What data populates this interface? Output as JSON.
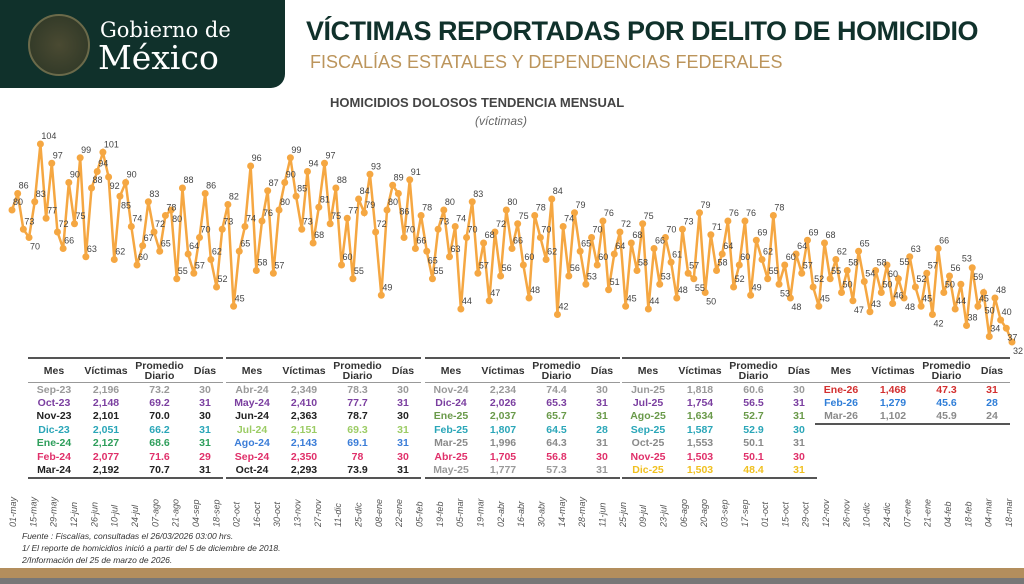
{
  "header": {
    "logo_line1": "Gobierno de",
    "logo_line2": "México",
    "title": "VÍCTIMAS REPORTADAS POR DELITO DE HOMICIDIO",
    "subtitle": "FISCALÍAS ESTATALES Y DEPENDENCIAS FEDERALES"
  },
  "colors": {
    "header_bg": "#10312b",
    "gold": "#bc955c",
    "series": "#f5a742"
  },
  "chart_data": {
    "type": "line",
    "title": "HOMICIDIOS DOLOSOS TENDENCIA MENSUAL",
    "subtitle": "(víctimas)",
    "ylim": [
      30,
      106
    ],
    "x_ticks": [
      "01-may",
      "15-may",
      "29-may",
      "12-jun",
      "26-jun",
      "10-jul",
      "24-jul",
      "07-ago",
      "21-ago",
      "04-sep",
      "18-sep",
      "02-oct",
      "16-oct",
      "30-oct",
      "13-nov",
      "27-nov",
      "11-dic",
      "25-dic",
      "08-ene",
      "22-ene",
      "05-feb",
      "19-feb",
      "05-mar",
      "19-mar",
      "02-abr",
      "16-abr",
      "30-abr",
      "14-may",
      "28-may",
      "11-jun",
      "25-jun",
      "09-jul",
      "23-jul",
      "06-ago",
      "20-ago",
      "03-sep",
      "17-sep",
      "01-oct",
      "15-oct",
      "29-oct",
      "12-nov",
      "26-nov",
      "10-dic",
      "24-dic",
      "07-ene",
      "21-ene",
      "04-feb",
      "18-feb",
      "04-mar",
      "18-mar"
    ],
    "values": [
      80,
      86,
      73,
      70,
      83,
      104,
      77,
      97,
      72,
      66,
      90,
      75,
      99,
      63,
      88,
      94,
      101,
      92,
      62,
      85,
      90,
      74,
      60,
      67,
      83,
      72,
      65,
      78,
      80,
      55,
      88,
      64,
      57,
      70,
      86,
      62,
      52,
      73,
      82,
      45,
      65,
      74,
      96,
      58,
      76,
      87,
      57,
      80,
      90,
      99,
      85,
      73,
      94,
      68,
      81,
      97,
      75,
      88,
      60,
      77,
      55,
      84,
      79,
      93,
      72,
      49,
      80,
      89,
      86,
      70,
      91,
      66,
      78,
      65,
      55,
      73,
      80,
      63,
      74,
      44,
      70,
      83,
      57,
      68,
      47,
      72,
      56,
      80,
      66,
      75,
      60,
      48,
      78,
      70,
      62,
      84,
      42,
      74,
      56,
      79,
      65,
      53,
      70,
      60,
      76,
      51,
      64,
      72,
      45,
      68,
      58,
      75,
      44,
      66,
      53,
      70,
      61,
      48,
      73,
      57,
      55,
      79,
      50,
      71,
      58,
      64,
      76,
      52,
      60,
      76,
      49,
      69,
      62,
      55,
      78,
      53,
      60,
      48,
      64,
      57,
      69,
      52,
      45,
      68,
      55,
      62,
      50,
      58,
      47,
      65,
      54,
      43,
      58,
      50,
      60,
      46,
      55,
      48,
      63,
      52,
      45,
      57,
      42,
      66,
      50,
      56,
      44,
      53,
      38,
      59,
      45,
      50,
      34,
      48,
      40,
      37,
      32
    ]
  },
  "table_headers": {
    "mes": "Mes",
    "victimas": "Víctimas",
    "promedio": "Promedio Diario",
    "dias": "Días"
  },
  "tables": [
    [
      {
        "mes": "Sep-23",
        "v": "2,196",
        "p": "73.2",
        "d": "30",
        "color": "#9a9a9a"
      },
      {
        "mes": "Oct-23",
        "v": "2,148",
        "p": "69.2",
        "d": "31",
        "color": "#7b3fa0"
      },
      {
        "mes": "Nov-23",
        "v": "2,101",
        "p": "70.0",
        "d": "30",
        "color": "#222222"
      },
      {
        "mes": "Dic-23",
        "v": "2,051",
        "p": "66.2",
        "d": "31",
        "color": "#2aa6b8"
      },
      {
        "mes": "Ene-24",
        "v": "2,127",
        "p": "68.6",
        "d": "31",
        "color": "#2e9e5b"
      },
      {
        "mes": "Feb-24",
        "v": "2,077",
        "p": "71.6",
        "d": "29",
        "color": "#e0306a"
      },
      {
        "mes": "Mar-24",
        "v": "2,192",
        "p": "70.7",
        "d": "31",
        "color": "#222222"
      }
    ],
    [
      {
        "mes": "Abr-24",
        "v": "2,349",
        "p": "78.3",
        "d": "30",
        "color": "#9a9a9a"
      },
      {
        "mes": "May-24",
        "v": "2,410",
        "p": "77.7",
        "d": "31",
        "color": "#7b3fa0"
      },
      {
        "mes": "Jun-24",
        "v": "2,363",
        "p": "78.7",
        "d": "30",
        "color": "#222222"
      },
      {
        "mes": "Jul-24",
        "v": "2,151",
        "p": "69.3",
        "d": "31",
        "color": "#9ccc65"
      },
      {
        "mes": "Ago-24",
        "v": "2,143",
        "p": "69.1",
        "d": "31",
        "color": "#3b7dd8"
      },
      {
        "mes": "Sep-24",
        "v": "2,350",
        "p": "78",
        "d": "30",
        "color": "#e0306a"
      },
      {
        "mes": "Oct-24",
        "v": "2,293",
        "p": "73.9",
        "d": "31",
        "color": "#222222"
      }
    ],
    [
      {
        "mes": "Nov-24",
        "v": "2,234",
        "p": "74.4",
        "d": "30",
        "color": "#9a9a9a"
      },
      {
        "mes": "Dic-24",
        "v": "2,026",
        "p": "65.3",
        "d": "31",
        "color": "#7b3fa0"
      },
      {
        "mes": "Ene-25",
        "v": "2,037",
        "p": "65.7",
        "d": "31",
        "color": "#6a9a4a"
      },
      {
        "mes": "Feb-25",
        "v": "1,807",
        "p": "64.5",
        "d": "28",
        "color": "#2aa6b8"
      },
      {
        "mes": "Mar-25",
        "v": "1,996",
        "p": "64.3",
        "d": "31",
        "color": "#8a8a8a"
      },
      {
        "mes": "Abr-25",
        "v": "1,705",
        "p": "56.8",
        "d": "30",
        "color": "#e0306a"
      },
      {
        "mes": "May-25",
        "v": "1,777",
        "p": "57.3",
        "d": "31",
        "color": "#9a9a9a"
      }
    ],
    [
      {
        "mes": "Jun-25",
        "v": "1,818",
        "p": "60.6",
        "d": "30",
        "color": "#9a9a9a"
      },
      {
        "mes": "Jul-25",
        "v": "1,754",
        "p": "56.5",
        "d": "31",
        "color": "#7b3fa0"
      },
      {
        "mes": "Ago-25",
        "v": "1,634",
        "p": "52.7",
        "d": "31",
        "color": "#6a9a4a"
      },
      {
        "mes": "Sep-25",
        "v": "1,587",
        "p": "52.9",
        "d": "30",
        "color": "#2aa6b8"
      },
      {
        "mes": "Oct-25",
        "v": "1,553",
        "p": "50.1",
        "d": "31",
        "color": "#8a8a8a"
      },
      {
        "mes": "Nov-25",
        "v": "1,503",
        "p": "50.1",
        "d": "30",
        "color": "#e0306a"
      },
      {
        "mes": "Dic-25",
        "v": "1,503",
        "p": "48.4",
        "d": "31",
        "color": "#f0c020"
      }
    ],
    [
      {
        "mes": "Ene-26",
        "v": "1,468",
        "p": "47.3",
        "d": "31",
        "color": "#d32f2f"
      },
      {
        "mes": "Feb-26",
        "v": "1,279",
        "p": "45.6",
        "d": "28",
        "color": "#2f7ed8"
      },
      {
        "mes": "Mar-26",
        "v": "1,102",
        "p": "45.9",
        "d": "24",
        "color": "#8a8a8a"
      }
    ]
  ],
  "notes": [
    "Fuente : Fiscalías, consultadas el 26/03/2026 03:00 hrs.",
    "1/ El reporte de homicidios inició a partir del 5 de diciembre de 2018.",
    "2/Información del 25 de marzo de 2026."
  ]
}
